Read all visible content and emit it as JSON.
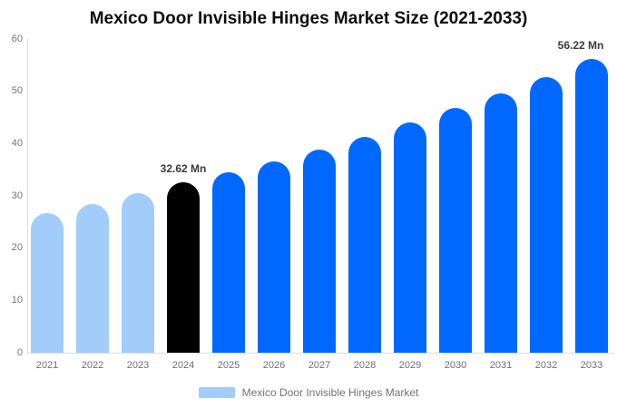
{
  "legend": {
    "label": "Mexico Door Invisible Hinges Market",
    "swatch_color": "#a2ccfa"
  },
  "chart_data": {
    "type": "bar",
    "title": "Mexico Door Invisible Hinges Market Size (2021-2033)",
    "categories": [
      "2021",
      "2022",
      "2023",
      "2024",
      "2025",
      "2026",
      "2027",
      "2028",
      "2029",
      "2030",
      "2031",
      "2032",
      "2033"
    ],
    "values": [
      26.7,
      28.5,
      30.5,
      32.62,
      34.5,
      36.6,
      38.8,
      41.3,
      44.0,
      46.8,
      49.6,
      52.7,
      56.22
    ],
    "unit": "Mn",
    "bar_roles": [
      "historical",
      "historical",
      "historical",
      "highlight",
      "forecast",
      "forecast",
      "forecast",
      "forecast",
      "forecast",
      "forecast",
      "forecast",
      "forecast",
      "forecast"
    ],
    "colors": {
      "historical": "#a2ccfa",
      "highlight": "#000000",
      "forecast": "#0068ff",
      "axis_line": "#dcdcdc"
    },
    "data_labels": [
      {
        "category": "2024",
        "text": "32.62 Mn"
      },
      {
        "category": "2033",
        "text": "56.22 Mn"
      }
    ],
    "xlabel": "",
    "ylabel": "",
    "ylim": [
      0,
      60
    ],
    "yticks": [
      0,
      10,
      20,
      30,
      40,
      50,
      60
    ],
    "grid": "off",
    "legend_position": "bottom"
  }
}
